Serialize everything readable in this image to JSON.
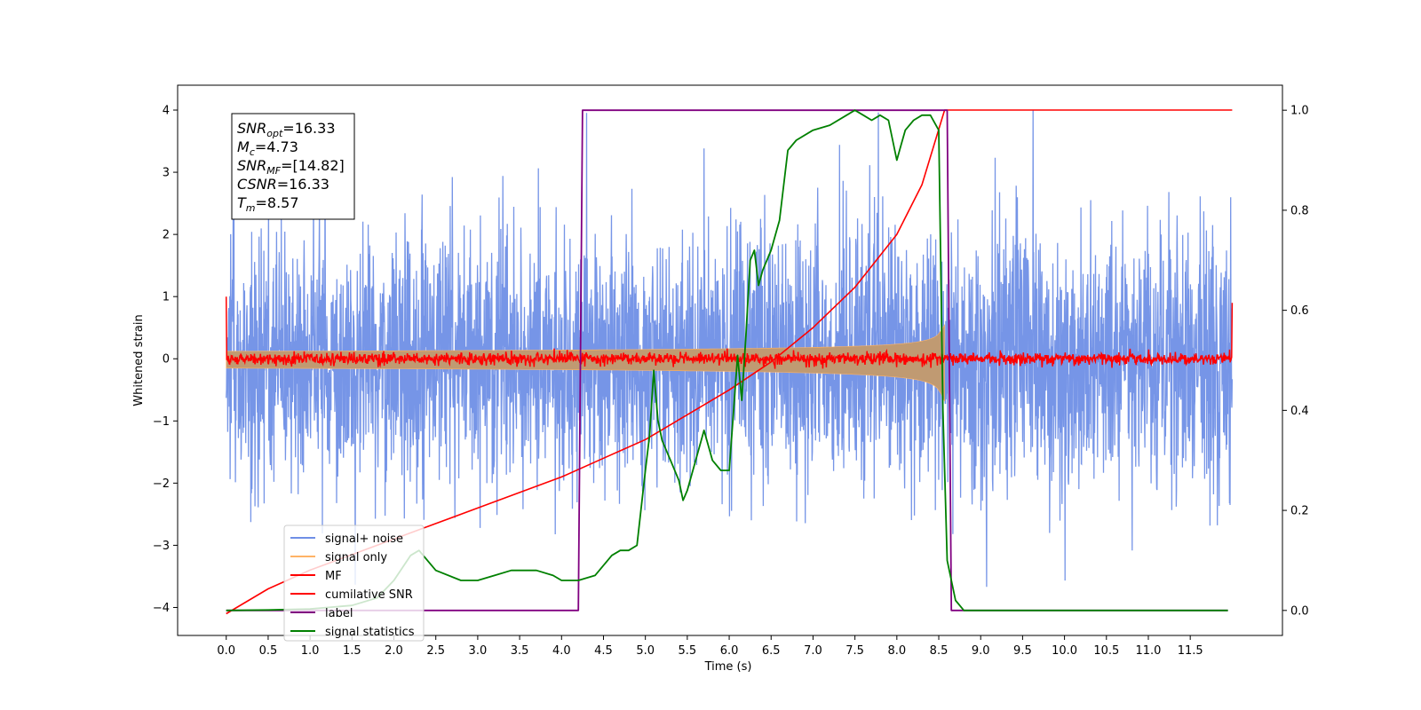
{
  "chart_data": {
    "type": "line",
    "xlabel": "Time (s)",
    "ylabel": "Whitened strain",
    "xlim": [
      -0.58,
      12.6
    ],
    "ylim": [
      -4.45,
      4.4
    ],
    "y2lim": [
      -0.05,
      1.05
    ],
    "x_ticks": [
      "0.0",
      "0.5",
      "1.0",
      "1.5",
      "2.0",
      "2.5",
      "3.0",
      "3.5",
      "4.0",
      "4.5",
      "5.0",
      "5.5",
      "6.0",
      "6.5",
      "7.0",
      "7.5",
      "8.0",
      "8.5",
      "9.0",
      "9.5",
      "10.0",
      "10.5",
      "11.0",
      "11.5"
    ],
    "y_ticks": [
      "4",
      "3",
      "2",
      "1",
      "0",
      "−1",
      "−2",
      "−3",
      "−4"
    ],
    "y2_ticks": [
      "1.0",
      "0.8",
      "0.6",
      "0.4",
      "0.2",
      "0.0"
    ],
    "info_box": [
      {
        "var": "SNR",
        "sub": "opt",
        "value": "=16.33"
      },
      {
        "var": "M",
        "sub": "c",
        "value": "=4.73"
      },
      {
        "var": "SNR",
        "sub": "MF",
        "value": "=[14.82]"
      },
      {
        "var": "CSNR",
        "sub": "",
        "value": "=16.33"
      },
      {
        "var": "T",
        "sub": "m",
        "value": "=8.57"
      }
    ],
    "legend_position": "lower-left",
    "colors": {
      "noise": "#6f8fe6",
      "signal": "#ffb366",
      "signal_fill": "#c09a72",
      "mf": "#ff0000",
      "cumulative": "#ff0000",
      "label": "#800080",
      "statistics": "#008000"
    },
    "series": [
      {
        "name": "signal+ noise",
        "axis": "left",
        "style": "noise",
        "range": [
          0,
          12
        ],
        "amplitude_sd": 1.0
      },
      {
        "name": "signal only",
        "axis": "left",
        "style": "chirp",
        "range": [
          0,
          8.57
        ],
        "start_amp": 0.12,
        "end_amp": 0.85
      },
      {
        "name": "MF",
        "axis": "left",
        "style": "noise",
        "range": [
          0,
          12
        ],
        "amplitude_sd": 0.05
      },
      {
        "name": "cumilative SNR",
        "axis": "left",
        "x": [
          0.0,
          0.5,
          1.0,
          1.5,
          2.0,
          2.5,
          3.0,
          3.5,
          4.0,
          4.5,
          5.0,
          5.5,
          6.0,
          6.5,
          7.0,
          7.5,
          8.0,
          8.3,
          8.57,
          8.6,
          9.0,
          10.0,
          11.0,
          12.0
        ],
        "y": [
          -4.1,
          -3.7,
          -3.4,
          -3.15,
          -2.9,
          -2.65,
          -2.4,
          -2.15,
          -1.9,
          -1.6,
          -1.3,
          -0.9,
          -0.5,
          -0.05,
          0.5,
          1.15,
          2.0,
          2.8,
          4.0,
          4.0,
          4.0,
          4.0,
          4.0,
          4.0
        ]
      },
      {
        "name": "label",
        "axis": "right",
        "x": [
          0.0,
          4.2,
          4.25,
          8.6,
          8.65,
          11.95
        ],
        "y": [
          0.0,
          0.0,
          1.0,
          1.0,
          0.0,
          0.0
        ]
      },
      {
        "name": "signal statistics",
        "axis": "right",
        "x": [
          0.0,
          0.5,
          1.0,
          1.5,
          1.8,
          2.0,
          2.2,
          2.3,
          2.5,
          2.8,
          3.0,
          3.2,
          3.4,
          3.5,
          3.7,
          3.9,
          4.0,
          4.2,
          4.4,
          4.5,
          4.6,
          4.7,
          4.8,
          4.9,
          5.0,
          5.05,
          5.1,
          5.15,
          5.2,
          5.3,
          5.4,
          5.45,
          5.5,
          5.6,
          5.7,
          5.8,
          5.9,
          6.0,
          6.1,
          6.15,
          6.2,
          6.25,
          6.3,
          6.35,
          6.4,
          6.5,
          6.6,
          6.7,
          6.8,
          7.0,
          7.2,
          7.4,
          7.5,
          7.6,
          7.7,
          7.8,
          7.9,
          8.0,
          8.05,
          8.1,
          8.2,
          8.3,
          8.4,
          8.5,
          8.55,
          8.6,
          8.7,
          8.8,
          9.0,
          10.0,
          11.0,
          11.95
        ],
        "y": [
          0.0,
          0.001,
          0.003,
          0.01,
          0.025,
          0.06,
          0.11,
          0.12,
          0.08,
          0.06,
          0.06,
          0.07,
          0.08,
          0.08,
          0.08,
          0.07,
          0.06,
          0.06,
          0.07,
          0.09,
          0.11,
          0.12,
          0.12,
          0.13,
          0.28,
          0.35,
          0.48,
          0.38,
          0.34,
          0.3,
          0.26,
          0.22,
          0.24,
          0.3,
          0.36,
          0.3,
          0.28,
          0.28,
          0.51,
          0.42,
          0.55,
          0.7,
          0.72,
          0.65,
          0.68,
          0.72,
          0.78,
          0.92,
          0.94,
          0.96,
          0.97,
          0.99,
          1.0,
          0.99,
          0.98,
          0.99,
          0.98,
          0.9,
          0.93,
          0.96,
          0.98,
          0.99,
          0.99,
          0.96,
          0.4,
          0.1,
          0.02,
          0.0,
          0.0,
          0.0,
          0.0,
          0.0
        ]
      }
    ]
  }
}
